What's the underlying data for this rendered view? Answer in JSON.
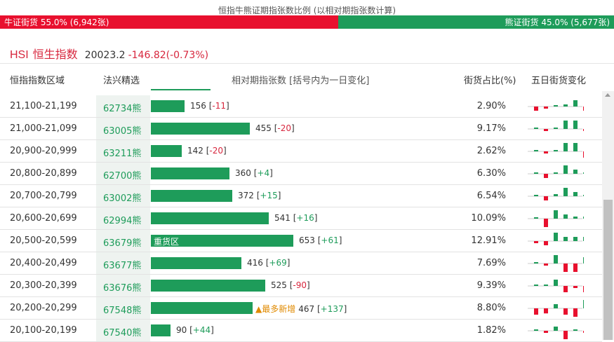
{
  "page_title": "恒指牛熊证期指张数比例 (以相对期指张数计算)",
  "ratio": {
    "bull_label": "牛证街货 55.0% (6,942张)",
    "bear_label": "熊证街货 45.0% (5,677张)",
    "bull_pct": 55.0,
    "bear_pct": 45.0
  },
  "index": {
    "code": "HSI",
    "name": "恒生指数",
    "price": "20023.2",
    "change": "-146.82(-0.73%)"
  },
  "columns": {
    "range": "恒指指数区域",
    "pick": "法兴精选",
    "contracts": "相对期指张数 [括号内为一日变化]",
    "pct": "街货占比(%)",
    "five_day": "五日街货变化"
  },
  "colors": {
    "bull": "#e8102e",
    "bear": "#1e9c5a",
    "highlight": "#e08a00"
  },
  "max_contracts": 653,
  "rows": [
    {
      "range": "21,100-21,199",
      "code": "62734熊",
      "contracts": 156,
      "count_text": "156",
      "change_text": "-11",
      "change_sign": "neg",
      "label": "",
      "badge": "",
      "pct": "2.90%",
      "spark": [
        -1,
        -0.5,
        0,
        0.5,
        1.5,
        -1
      ]
    },
    {
      "range": "21,000-21,099",
      "code": "63005熊",
      "contracts": 455,
      "count_text": "455",
      "change_text": "-20",
      "change_sign": "neg",
      "label": "",
      "badge": "",
      "pct": "9.17%",
      "spark": [
        0,
        -0.5,
        0.3,
        2,
        2,
        -0.5
      ]
    },
    {
      "range": "20,900-20,999",
      "code": "63211熊",
      "contracts": 142,
      "count_text": "142",
      "change_text": "-20",
      "change_sign": "neg",
      "label": "",
      "badge": "",
      "pct": "2.62%",
      "spark": [
        0,
        -0.5,
        0.3,
        2,
        2,
        -1.5
      ]
    },
    {
      "range": "20,800-20,899",
      "code": "62700熊",
      "contracts": 360,
      "count_text": "360",
      "change_text": "+4",
      "change_sign": "pos",
      "label": "",
      "badge": "",
      "pct": "6.30%",
      "spark": [
        0,
        -1,
        0.3,
        2,
        1,
        0.3
      ]
    },
    {
      "range": "20,700-20,799",
      "code": "63002熊",
      "contracts": 372,
      "count_text": "372",
      "change_text": "+15",
      "change_sign": "pos",
      "label": "",
      "badge": "",
      "pct": "6.54%",
      "spark": [
        0,
        -1,
        0.5,
        2,
        1,
        0.3
      ]
    },
    {
      "range": "20,600-20,699",
      "code": "62994熊",
      "contracts": 541,
      "count_text": "541",
      "change_text": "+16",
      "change_sign": "pos",
      "label": "",
      "badge": "",
      "pct": "10.09%",
      "spark": [
        0,
        -2,
        2,
        1,
        0.5,
        0.5
      ]
    },
    {
      "range": "20,500-20,599",
      "code": "63679熊",
      "contracts": 653,
      "count_text": "653",
      "change_text": "+61",
      "change_sign": "pos",
      "label": "重货区",
      "badge": "",
      "pct": "12.91%",
      "spark": [
        -0.5,
        -1,
        2,
        1,
        1,
        1
      ]
    },
    {
      "range": "20,400-20,499",
      "code": "63677熊",
      "contracts": 416,
      "count_text": "416",
      "change_text": "+69",
      "change_sign": "pos",
      "label": "",
      "badge": "",
      "pct": "7.69%",
      "spark": [
        0,
        -0.5,
        2,
        -2,
        -2,
        1.5
      ]
    },
    {
      "range": "20,300-20,399",
      "code": "63676熊",
      "contracts": 525,
      "count_text": "525",
      "change_text": "-90",
      "change_sign": "neg",
      "label": "",
      "badge": "",
      "pct": "9.39%",
      "spark": [
        0,
        0,
        1.5,
        -1.5,
        -0.5,
        -1.5
      ]
    },
    {
      "range": "20,200-20,299",
      "code": "67548熊",
      "contracts": 467,
      "count_text": "467",
      "change_text": "+137",
      "change_sign": "pos",
      "label": "",
      "badge": "▲最多新增",
      "pct": "8.80%",
      "spark": [
        -1.5,
        -1.2,
        1,
        -1.5,
        -2,
        2
      ]
    },
    {
      "range": "20,100-20,199",
      "code": "67540熊",
      "contracts": 90,
      "count_text": "90",
      "change_text": "+44",
      "change_sign": "pos",
      "label": "",
      "badge": "",
      "pct": "1.82%",
      "spark": [
        0,
        -0.5,
        1,
        -2,
        0.3,
        -0.5
      ]
    }
  ]
}
